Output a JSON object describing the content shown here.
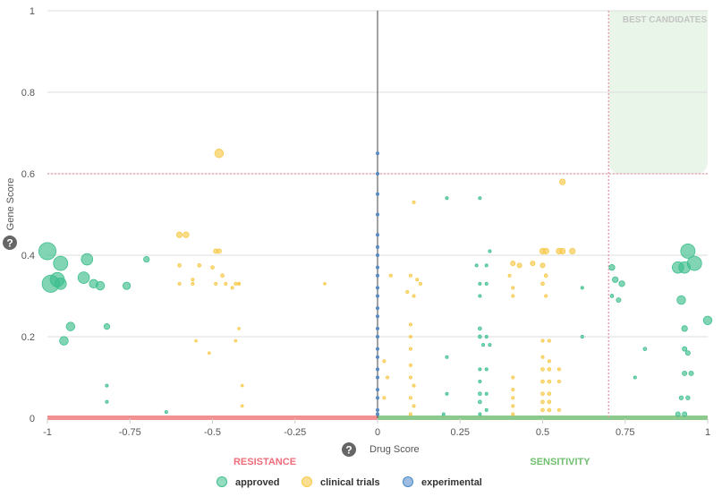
{
  "chart_data": {
    "type": "scatter",
    "title": "",
    "xlabel": "Drug Score",
    "ylabel": "Gene Score",
    "xlim": [
      -1,
      1
    ],
    "ylim": [
      0,
      1
    ],
    "x_ticks": [
      "-1",
      "-0.75",
      "-0.5",
      "-0.25",
      "0",
      "0.25",
      "0.5",
      "0.75",
      "1"
    ],
    "y_ticks": [
      "0",
      "0.2",
      "0.4",
      "0.6",
      "0.8",
      "1"
    ],
    "grid": "horizontal",
    "legend_position": "bottom-center",
    "zones": {
      "resistance_label": "RESISTANCE",
      "sensitivity_label": "SENSITIVITY",
      "best_label": "BEST CANDIDATES",
      "gene_threshold": 0.6,
      "drug_threshold": 0.7
    },
    "colors": {
      "approved": "#3dbf8d",
      "clinical_trials": "#f7c948",
      "experimental": "#4a86c8",
      "resistance": "#f08585",
      "sensitivity": "#7fc37f",
      "best_zone": "#e8f5e8",
      "threshold_line": "#e89aa8"
    },
    "series": [
      {
        "name": "approved",
        "points": [
          [
            -1,
            0.41,
            3
          ],
          [
            -0.99,
            0.33,
            3
          ],
          [
            -0.97,
            0.34,
            2.5
          ],
          [
            -0.96,
            0.38,
            2.5
          ],
          [
            -0.96,
            0.33,
            2
          ],
          [
            -0.95,
            0.19,
            1.5
          ],
          [
            -0.93,
            0.225,
            1.5
          ],
          [
            -0.89,
            0.345,
            2
          ],
          [
            -0.88,
            0.39,
            2
          ],
          [
            -0.86,
            0.33,
            1.5
          ],
          [
            -0.84,
            0.325,
            1.5
          ],
          [
            -0.82,
            0.225,
            1
          ],
          [
            -0.82,
            0.08,
            0.5
          ],
          [
            -0.82,
            0.04,
            0.5
          ],
          [
            -0.76,
            0.325,
            1.3
          ],
          [
            -0.7,
            0.39,
            1
          ],
          [
            -0.64,
            0.015,
            0.5
          ],
          [
            0.21,
            0.54,
            0.5
          ],
          [
            0.31,
            0.54,
            0.5
          ],
          [
            0.21,
            0.15,
            0.5
          ],
          [
            0.21,
            0.06,
            0.5
          ],
          [
            0.2,
            0.01,
            0.5
          ],
          [
            0.3,
            0.375,
            0.5
          ],
          [
            0.31,
            0.33,
            0.5
          ],
          [
            0.31,
            0.3,
            0.5
          ],
          [
            0.31,
            0.22,
            0.6
          ],
          [
            0.31,
            0.2,
            0.6
          ],
          [
            0.32,
            0.18,
            0.5
          ],
          [
            0.31,
            0.12,
            0.5
          ],
          [
            0.31,
            0.09,
            0.5
          ],
          [
            0.31,
            0.06,
            0.6
          ],
          [
            0.31,
            0.04,
            0.6
          ],
          [
            0.31,
            0.01,
            0.5
          ],
          [
            0.33,
            0.375,
            0.5
          ],
          [
            0.33,
            0.33,
            0.5
          ],
          [
            0.33,
            0.2,
            0.5
          ],
          [
            0.33,
            0.12,
            0.5
          ],
          [
            0.33,
            0.06,
            0.5
          ],
          [
            0.33,
            0.02,
            0.5
          ],
          [
            0.34,
            0.41,
            0.5
          ],
          [
            0.34,
            0.18,
            0.5
          ],
          [
            0.62,
            0.32,
            0.5
          ],
          [
            0.62,
            0.2,
            0.5
          ],
          [
            0.71,
            0.37,
            1
          ],
          [
            0.71,
            0.3,
            0.6
          ],
          [
            0.72,
            0.34,
            1
          ],
          [
            0.73,
            0.29,
            0.8
          ],
          [
            0.74,
            0.33,
            1
          ],
          [
            0.78,
            0.1,
            0.5
          ],
          [
            0.81,
            0.17,
            0.6
          ],
          [
            0.91,
            0.37,
            2
          ],
          [
            0.92,
            0.29,
            1.5
          ],
          [
            0.93,
            0.37,
            2
          ],
          [
            0.94,
            0.41,
            2.5
          ],
          [
            0.96,
            0.38,
            2.5
          ],
          [
            0.93,
            0.22,
            1
          ],
          [
            0.93,
            0.17,
            0.8
          ],
          [
            0.94,
            0.16,
            0.8
          ],
          [
            0.93,
            0.11,
            0.8
          ],
          [
            0.95,
            0.11,
            0.8
          ],
          [
            0.92,
            0.05,
            0.7
          ],
          [
            0.94,
            0.05,
            0.7
          ],
          [
            0.91,
            0.01,
            0.8
          ],
          [
            0.93,
            0.01,
            0.8
          ],
          [
            1,
            0.24,
            1.5
          ]
        ]
      },
      {
        "name": "clinical trials",
        "points": [
          [
            -0.48,
            0.65,
            1.5
          ],
          [
            -0.6,
            0.45,
            1
          ],
          [
            -0.58,
            0.45,
            1
          ],
          [
            -0.48,
            0.41,
            0.8
          ],
          [
            -0.49,
            0.41,
            0.8
          ],
          [
            -0.6,
            0.375,
            0.6
          ],
          [
            -0.54,
            0.375,
            0.6
          ],
          [
            -0.56,
            0.34,
            0.5
          ],
          [
            -0.5,
            0.37,
            0.6
          ],
          [
            -0.47,
            0.35,
            0.6
          ],
          [
            -0.6,
            0.33,
            0.5
          ],
          [
            -0.56,
            0.33,
            0.5
          ],
          [
            -0.49,
            0.33,
            0.5
          ],
          [
            -0.46,
            0.33,
            0.5
          ],
          [
            -0.44,
            0.32,
            0.5
          ],
          [
            -0.43,
            0.33,
            0.5
          ],
          [
            -0.42,
            0.33,
            0.5
          ],
          [
            -0.42,
            0.33,
            0.5
          ],
          [
            -0.55,
            0.19,
            0.4
          ],
          [
            -0.42,
            0.22,
            0.4
          ],
          [
            -0.43,
            0.19,
            0.4
          ],
          [
            -0.51,
            0.16,
            0.4
          ],
          [
            -0.41,
            0.08,
            0.4
          ],
          [
            -0.41,
            0.03,
            0.4
          ],
          [
            -0.16,
            0.33,
            0.4
          ],
          [
            0.11,
            0.53,
            0.5
          ],
          [
            0.56,
            0.58,
            1
          ],
          [
            0.04,
            0.35,
            0.5
          ],
          [
            0.1,
            0.35,
            0.5
          ],
          [
            0.12,
            0.34,
            0.5
          ],
          [
            0.13,
            0.33,
            0.5
          ],
          [
            0.09,
            0.31,
            0.5
          ],
          [
            0.11,
            0.3,
            0.5
          ],
          [
            0.1,
            0.23,
            0.5
          ],
          [
            0.1,
            0.2,
            0.5
          ],
          [
            0.1,
            0.17,
            0.5
          ],
          [
            0.1,
            0.13,
            0.5
          ],
          [
            0.1,
            0.1,
            0.5
          ],
          [
            0.11,
            0.08,
            0.5
          ],
          [
            0.1,
            0.05,
            0.5
          ],
          [
            0.11,
            0.03,
            0.5
          ],
          [
            0.1,
            0.01,
            0.5
          ],
          [
            0.02,
            0.14,
            0.5
          ],
          [
            0.03,
            0.1,
            0.5
          ],
          [
            0.02,
            0.05,
            0.5
          ],
          [
            0.41,
            0.38,
            0.8
          ],
          [
            0.43,
            0.375,
            0.8
          ],
          [
            0.4,
            0.35,
            0.5
          ],
          [
            0.41,
            0.32,
            0.5
          ],
          [
            0.41,
            0.3,
            0.5
          ],
          [
            0.41,
            0.1,
            0.5
          ],
          [
            0.41,
            0.07,
            0.5
          ],
          [
            0.41,
            0.05,
            0.5
          ],
          [
            0.41,
            0.03,
            0.5
          ],
          [
            0.41,
            0.01,
            0.5
          ],
          [
            0.47,
            0.38,
            0.8
          ],
          [
            0.5,
            0.41,
            1
          ],
          [
            0.51,
            0.41,
            1
          ],
          [
            0.55,
            0.41,
            1
          ],
          [
            0.56,
            0.41,
            1
          ],
          [
            0.59,
            0.41,
            1
          ],
          [
            0.5,
            0.375,
            0.8
          ],
          [
            0.51,
            0.35,
            0.6
          ],
          [
            0.5,
            0.33,
            0.6
          ],
          [
            0.51,
            0.3,
            0.5
          ],
          [
            0.5,
            0.19,
            0.5
          ],
          [
            0.52,
            0.19,
            0.5
          ],
          [
            0.5,
            0.15,
            0.5
          ],
          [
            0.52,
            0.14,
            0.5
          ],
          [
            0.5,
            0.12,
            0.6
          ],
          [
            0.52,
            0.12,
            0.6
          ],
          [
            0.5,
            0.09,
            0.6
          ],
          [
            0.52,
            0.09,
            0.6
          ],
          [
            0.5,
            0.06,
            0.6
          ],
          [
            0.52,
            0.06,
            0.6
          ],
          [
            0.5,
            0.04,
            0.6
          ],
          [
            0.52,
            0.04,
            0.6
          ],
          [
            0.5,
            0.02,
            0.6
          ],
          [
            0.52,
            0.02,
            0.6
          ],
          [
            0.55,
            0.12,
            0.5
          ],
          [
            0.55,
            0.09,
            0.5
          ],
          [
            0.55,
            0.02,
            0.5
          ]
        ]
      },
      {
        "name": "experimental",
        "points": [
          [
            0,
            0.65,
            0.5
          ],
          [
            0,
            0.6,
            0.5
          ],
          [
            0,
            0.55,
            0.5
          ],
          [
            0,
            0.5,
            0.5
          ],
          [
            0,
            0.45,
            0.5
          ],
          [
            0,
            0.42,
            0.5
          ],
          [
            0,
            0.4,
            0.5
          ],
          [
            0,
            0.37,
            0.5
          ],
          [
            0,
            0.35,
            0.5
          ],
          [
            0,
            0.32,
            0.5
          ],
          [
            0,
            0.3,
            0.5
          ],
          [
            0,
            0.27,
            0.5
          ],
          [
            0,
            0.25,
            0.5
          ],
          [
            0,
            0.22,
            0.5
          ],
          [
            0,
            0.2,
            0.5
          ],
          [
            0,
            0.17,
            0.5
          ],
          [
            0,
            0.15,
            0.5
          ],
          [
            0,
            0.12,
            0.5
          ],
          [
            0,
            0.1,
            0.5
          ],
          [
            0,
            0.07,
            0.5
          ],
          [
            0,
            0.05,
            0.5
          ],
          [
            0,
            0.02,
            0.5
          ],
          [
            0,
            0.01,
            0.5
          ]
        ]
      }
    ]
  }
}
